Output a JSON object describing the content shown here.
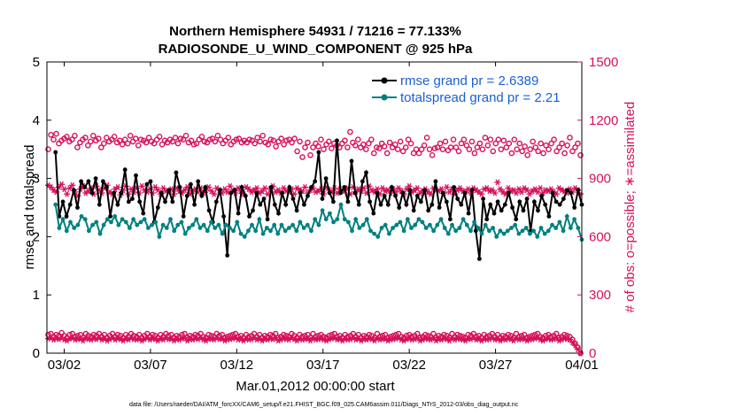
{
  "chart_data": {
    "type": "line",
    "title": "Northern Hemisphere 54931 / 71216 = 77.133%",
    "subtitle": "RADIOSONDE_U_WIND_COMPONENT @ 925 hPa",
    "xlabel": "Mar.01,2012 00:00:00 start",
    "ylabel": "rmse and totalspread",
    "y2label": "# of obs: o=possible; ∗=assimilated",
    "footnote": "data file: /Users/raeder/DAI/ATM_forcXX/CAM6_setup/f.e21.FHIST_BGC.f09_025.CAM6assim.011/Diags_NTrS_2012-03/obs_diag_output.nc",
    "xlim": [
      0.5,
      31.5
    ],
    "ylim": [
      0,
      5
    ],
    "y2lim": [
      0,
      1500
    ],
    "xticks": [
      {
        "pos": 1.5,
        "label": "03/02"
      },
      {
        "pos": 6.5,
        "label": "03/07"
      },
      {
        "pos": 11.5,
        "label": "03/12"
      },
      {
        "pos": 16.5,
        "label": "03/17"
      },
      {
        "pos": 21.5,
        "label": "03/22"
      },
      {
        "pos": 26.5,
        "label": "03/27"
      },
      {
        "pos": 31.5,
        "label": "04/01"
      }
    ],
    "yticks": [
      "0",
      "1",
      "2",
      "3",
      "4",
      "5"
    ],
    "y2ticks": [
      "0",
      "300",
      "600",
      "900",
      "1200",
      "1500"
    ],
    "colors": {
      "rmse": "#000000",
      "spread": "#008080",
      "obs": "#d6105a",
      "legend_text": "#1a5fd6"
    },
    "series": [
      {
        "name": "rmse grand pr = 2.6389",
        "key": "rmse",
        "values": [
          3.45,
          2.35,
          2.6,
          2.35,
          2.55,
          2.8,
          2.5,
          2.95,
          2.85,
          2.95,
          2.75,
          3.0,
          2.55,
          2.95,
          2.85,
          2.35,
          2.75,
          2.55,
          2.75,
          3.15,
          2.6,
          2.65,
          3.05,
          2.6,
          2.4,
          2.9,
          2.95,
          2.25,
          2.5,
          2.75,
          2.6,
          2.8,
          2.6,
          3.1,
          2.85,
          2.35,
          2.7,
          2.9,
          2.55,
          2.95,
          2.7,
          2.85,
          2.45,
          2.25,
          2.6,
          2.8,
          2.35,
          1.68,
          2.75,
          2.8,
          2.4,
          2.85,
          2.7,
          2.35,
          2.45,
          2.75,
          2.55,
          2.65,
          2.3,
          2.85,
          2.55,
          2.4,
          2.75,
          2.55,
          2.85,
          2.65,
          2.45,
          2.75,
          2.55,
          2.7,
          2.85,
          2.95,
          3.45,
          2.65,
          3.0,
          2.75,
          2.6,
          3.65,
          2.75,
          2.85,
          2.6,
          3.3,
          2.75,
          2.55,
          2.95,
          3.1,
          2.6,
          2.4,
          2.75,
          2.55,
          2.7,
          2.55,
          2.85,
          2.7,
          2.5,
          2.75,
          2.55,
          2.8,
          2.45,
          2.7,
          2.6,
          2.8,
          2.45,
          2.55,
          2.95,
          2.5,
          2.75,
          2.6,
          2.3,
          2.85,
          2.65,
          2.55,
          2.75,
          2.4,
          2.8,
          2.1,
          1.62,
          2.65,
          2.3,
          2.55,
          2.4,
          2.6,
          2.45,
          2.55,
          2.75,
          2.5,
          2.3,
          2.6,
          2.45,
          2.65,
          2.1,
          2.6,
          2.45,
          2.7,
          2.55,
          2.35,
          2.75,
          2.6,
          2.55,
          2.65,
          2.8,
          2.75,
          2.5,
          2.8,
          2.55
        ]
      },
      {
        "name": "totalspread grand pr = 2.21",
        "key": "spread",
        "values": [
          2.55,
          2.15,
          2.3,
          2.1,
          2.25,
          2.15,
          2.2,
          2.35,
          2.3,
          2.1,
          2.2,
          2.25,
          2.05,
          2.2,
          2.3,
          2.25,
          2.35,
          2.2,
          2.3,
          2.25,
          2.15,
          2.3,
          2.2,
          2.25,
          2.3,
          2.15,
          2.2,
          2.25,
          2.0,
          2.2,
          2.15,
          2.3,
          2.1,
          2.2,
          2.25,
          2.05,
          2.15,
          2.2,
          2.3,
          2.15,
          2.2,
          2.1,
          2.25,
          2.15,
          2.2,
          2.05,
          2.2,
          2.15,
          2.1,
          2.25,
          2.05,
          2.0,
          2.1,
          2.2,
          2.1,
          2.3,
          2.05,
          2.15,
          2.1,
          2.2,
          2.05,
          2.2,
          2.1,
          2.15,
          2.2,
          2.1,
          2.25,
          2.15,
          2.2,
          2.1,
          2.3,
          2.2,
          2.45,
          2.3,
          2.4,
          2.25,
          2.3,
          2.55,
          2.3,
          2.25,
          2.1,
          2.3,
          2.15,
          2.2,
          2.3,
          2.1,
          2.05,
          2.0,
          2.15,
          2.2,
          2.05,
          2.15,
          2.2,
          2.25,
          2.1,
          2.3,
          2.15,
          2.2,
          2.3,
          2.25,
          2.15,
          2.2,
          2.1,
          2.2,
          2.3,
          2.15,
          2.05,
          2.2,
          2.1,
          2.15,
          2.3,
          2.2,
          2.1,
          2.25,
          2.15,
          2.05,
          2.2,
          2.1,
          2.15,
          2.0,
          2.1,
          2.05,
          2.1,
          2.15,
          2.2,
          2.05,
          2.1,
          2.15,
          2.05,
          2.1,
          2.0,
          2.15,
          2.05,
          2.1,
          2.2,
          2.15,
          2.25,
          2.1,
          2.35,
          2.15,
          2.3,
          2.15,
          1.95
        ]
      }
    ],
    "obs_possible": [
      1050,
      1125,
      1100,
      1130,
      1080,
      1095,
      1105,
      1115,
      1090,
      1100,
      1120,
      1060,
      1085,
      1100,
      1110,
      1070,
      1090,
      1120,
      1095,
      1105,
      1060,
      1080,
      1110,
      1090,
      1100,
      1115,
      1085,
      1095,
      1075,
      1100,
      1080,
      1120,
      1090,
      1105,
      1070,
      1100,
      1095,
      1085,
      1110,
      1090,
      1080,
      1100,
      1115,
      1075,
      1095,
      1085,
      1100,
      1090,
      1110,
      1080,
      1105,
      1100,
      1120,
      1085,
      1095,
      1075,
      1080,
      1100,
      1115,
      1090,
      1085,
      1100,
      1105,
      1090,
      1120,
      1100,
      1080,
      1095,
      1110,
      1075,
      1090,
      1100,
      1105,
      1085,
      1095,
      1085,
      1100,
      1095,
      1080,
      1110,
      1090,
      1120,
      1085,
      1075,
      1100,
      1095,
      1065,
      1090,
      1105,
      1075,
      1095,
      1100,
      1085,
      1105,
      1040,
      1090,
      1010,
      1060,
      1085,
      1020,
      1060,
      1080,
      1065,
      1100,
      1050,
      1075,
      1090,
      1055,
      1080,
      1070,
      1060,
      1080,
      1095,
      1060,
      1140,
      1085,
      1070,
      1100,
      1060,
      1075,
      1050,
      1080,
      1100,
      1030,
      1060,
      1055,
      1080,
      1065,
      1030,
      1085,
      1060,
      1075,
      1050,
      1090,
      1040,
      1060,
      1100,
      1080,
      1030,
      1050,
      1030,
      1050,
      1070,
      1110,
      1050,
      1020,
      1055,
      1060,
      1080,
      1050,
      1090,
      1045,
      1060,
      1100,
      1060,
      1040,
      1080,
      1100,
      1070,
      1050,
      1090,
      1030,
      1060,
      1080,
      1050,
      1110,
      1070,
      1100,
      1040,
      1080,
      1100,
      1050,
      1095,
      1060,
      1080,
      1030,
      1100,
      1050,
      1080,
      1040,
      1065,
      1020,
      1050,
      1090,
      1060,
      1040,
      1080,
      1030,
      1070,
      1050,
      1080,
      1100,
      1040,
      1060,
      1080,
      1030,
      1070,
      1110,
      1040,
      1060,
      1080,
      1020
    ],
    "obs_assimilated": [
      865,
      855,
      840,
      830,
      855,
      870,
      845,
      820,
      850,
      865,
      830,
      810,
      845,
      860,
      825,
      835,
      850,
      820,
      860,
      840,
      825,
      850,
      865,
      830,
      820,
      845,
      855,
      815,
      840,
      860,
      820,
      845,
      830,
      850,
      825,
      860,
      840,
      830,
      845,
      825,
      855,
      840,
      820,
      850,
      835,
      830,
      845,
      820,
      850,
      835,
      825,
      840,
      855,
      820,
      835,
      845,
      830,
      850,
      825,
      840,
      855,
      835,
      820,
      850,
      840,
      825,
      845,
      830,
      860,
      840,
      825,
      850,
      835,
      820,
      855,
      845,
      830,
      840,
      850,
      825,
      835,
      850,
      820,
      845,
      860,
      830,
      840,
      825,
      850,
      835,
      830,
      845,
      820,
      850,
      840,
      835,
      855,
      825,
      840,
      850,
      830,
      835,
      845,
      820,
      855,
      840,
      830,
      850,
      825,
      845,
      835,
      840,
      850,
      820,
      855,
      830,
      845,
      835,
      850,
      825,
      860,
      840,
      830,
      845,
      820,
      850,
      835,
      840,
      825,
      845,
      830,
      850,
      835,
      820,
      845,
      860,
      830,
      840,
      850,
      825,
      835,
      845,
      830,
      820,
      850,
      840,
      835,
      845,
      825,
      855,
      830,
      845,
      820,
      840,
      850,
      835,
      830,
      845,
      825,
      850,
      840,
      830,
      820,
      845,
      850,
      835,
      840,
      825,
      880,
      845,
      830,
      820,
      850,
      835,
      840,
      825,
      845,
      830,
      850,
      840,
      820,
      835,
      845,
      830,
      850,
      825,
      840,
      835,
      845,
      830,
      820,
      850,
      840,
      835,
      825,
      845,
      830,
      850,
      840,
      820
    ],
    "obs_possible_low": [
      95,
      100,
      85,
      95,
      90,
      105,
      90,
      80,
      95,
      100,
      85,
      90,
      95,
      80,
      100,
      90,
      85,
      95,
      90,
      100,
      85,
      95,
      80,
      90,
      100,
      85,
      95,
      90,
      80,
      95,
      85,
      100,
      90,
      85,
      95,
      80,
      90,
      100,
      85,
      95,
      90,
      80,
      95,
      85,
      100,
      90,
      95,
      80,
      90,
      85,
      95,
      100,
      80,
      90,
      85,
      95,
      90,
      100,
      85,
      80,
      95,
      90,
      85,
      100,
      90,
      95,
      80,
      85,
      90,
      95,
      100,
      85,
      90,
      80,
      95,
      85,
      90,
      100,
      85,
      95,
      80,
      90,
      85,
      95,
      90,
      100,
      80,
      85,
      95,
      90,
      85,
      100,
      90,
      80,
      95,
      85,
      90,
      95,
      80,
      100,
      85,
      90,
      95,
      85,
      80,
      90,
      95,
      100,
      85,
      90,
      80,
      95,
      85,
      90,
      100,
      85,
      95,
      80,
      90,
      85,
      95,
      90,
      80,
      100,
      85,
      90,
      95,
      80,
      85,
      90,
      95,
      100,
      85,
      80,
      90,
      95,
      85,
      90,
      100,
      80,
      85,
      95,
      90,
      85,
      100,
      80,
      90,
      85,
      95,
      90,
      80,
      100,
      85,
      95,
      90,
      85,
      80,
      95,
      90,
      100,
      85,
      90,
      80,
      95,
      85,
      90,
      100,
      85,
      95,
      80,
      90,
      85,
      95,
      90,
      80,
      100,
      85,
      90,
      95,
      80,
      85,
      90,
      95,
      100,
      85,
      80,
      90,
      95,
      85,
      90,
      100,
      80,
      85,
      95,
      90,
      85,
      70,
      50,
      30,
      0
    ],
    "obs_assimilated_low": [
      75,
      80,
      70,
      75,
      72,
      80,
      70,
      65,
      75,
      80,
      70,
      72,
      75,
      65,
      80,
      72,
      70,
      75,
      72,
      80,
      70,
      75,
      65,
      72,
      80,
      70,
      75,
      72,
      65,
      75,
      70,
      80,
      72,
      70,
      75,
      65,
      72,
      80,
      70,
      75,
      72,
      65,
      75,
      70,
      80,
      72,
      75,
      65,
      72,
      70,
      75,
      80,
      65,
      72,
      70,
      75,
      72,
      80,
      70,
      65,
      75,
      72,
      70,
      80,
      72,
      75,
      65,
      70,
      72,
      75,
      80,
      70,
      72,
      65,
      75,
      70,
      72,
      80,
      70,
      75,
      65,
      72,
      70,
      75,
      72,
      80,
      65,
      70,
      75,
      72,
      70,
      80,
      72,
      65,
      75,
      70,
      72,
      75,
      65,
      80,
      70,
      72,
      75,
      70,
      65,
      72,
      75,
      80,
      70,
      72,
      65,
      75,
      70,
      72,
      80,
      70,
      75,
      65,
      72,
      70,
      75,
      72,
      65,
      80,
      70,
      72,
      75,
      65,
      70,
      72,
      75,
      80,
      70,
      65,
      72,
      75,
      70,
      72,
      80,
      65,
      70,
      75,
      72,
      70,
      80,
      65,
      72,
      70,
      75,
      72,
      65,
      80,
      70,
      75,
      72,
      70,
      65,
      75,
      72,
      80,
      70,
      72,
      65,
      75,
      70,
      72,
      80,
      70,
      75,
      65,
      72,
      70,
      75,
      72,
      65,
      80,
      70,
      72,
      75,
      65,
      70,
      72,
      75,
      80,
      70,
      65,
      72,
      75,
      70,
      72,
      80,
      65,
      70,
      75,
      72,
      70,
      55,
      40,
      20,
      0
    ]
  }
}
